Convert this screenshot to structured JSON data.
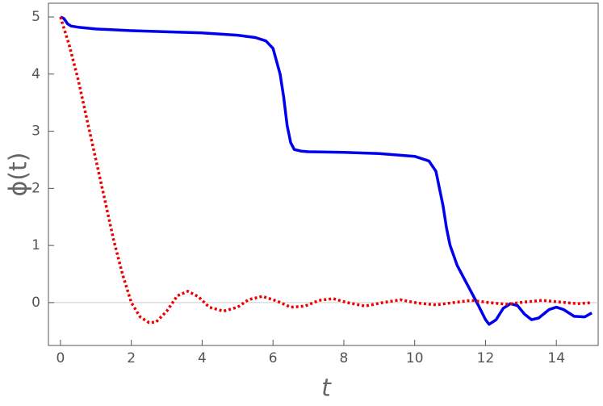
{
  "chart_data": {
    "type": "line",
    "x_label": "t",
    "y_label": "ϕ(t)",
    "xlim": [
      -0.34,
      15.18
    ],
    "ylim": [
      -0.75,
      5.24
    ],
    "xticks": [
      0,
      2,
      4,
      6,
      8,
      10,
      12,
      14
    ],
    "yticks": [
      0,
      1,
      2,
      3,
      4,
      5
    ],
    "zero_line": true,
    "series": [
      {
        "color": "#0000ee",
        "style": "solid",
        "x": [
          0,
          0.1,
          0.2,
          0.3,
          0.5,
          1,
          2,
          3,
          4,
          5,
          5.5,
          5.8,
          6.0,
          6.2,
          6.3,
          6.4,
          6.5,
          6.6,
          6.8,
          7,
          8,
          9,
          10,
          10.4,
          10.6,
          10.8,
          10.9,
          11,
          11.2,
          11.5,
          11.8,
          12,
          12.1,
          12.3,
          12.5,
          12.7,
          12.9,
          13.1,
          13.3,
          13.5,
          13.8,
          14,
          14.2,
          14.5,
          14.8,
          15
        ],
        "values": [
          5.0,
          4.97,
          4.88,
          4.84,
          4.82,
          4.79,
          4.76,
          4.74,
          4.72,
          4.68,
          4.64,
          4.58,
          4.45,
          4.0,
          3.6,
          3.1,
          2.8,
          2.68,
          2.65,
          2.64,
          2.63,
          2.61,
          2.56,
          2.48,
          2.3,
          1.7,
          1.3,
          1.0,
          0.65,
          0.3,
          -0.05,
          -0.3,
          -0.38,
          -0.3,
          -0.1,
          -0.02,
          -0.05,
          -0.2,
          -0.3,
          -0.27,
          -0.12,
          -0.08,
          -0.12,
          -0.24,
          -0.25,
          -0.18
        ]
      },
      {
        "color": "#ee0000",
        "style": "dotted",
        "x": [
          0,
          0.25,
          0.5,
          0.75,
          1,
          1.25,
          1.5,
          1.75,
          2,
          2.25,
          2.5,
          2.7,
          3,
          3.3,
          3.6,
          3.9,
          4.2,
          4.6,
          5,
          5.3,
          5.7,
          6.1,
          6.5,
          6.9,
          7.3,
          7.7,
          8.1,
          8.6,
          9.1,
          9.6,
          10.1,
          10.6,
          11.1,
          11.6,
          12.1,
          12.6,
          13.1,
          13.6,
          14.1,
          14.6,
          15
        ],
        "values": [
          5.0,
          4.5,
          3.9,
          3.2,
          2.5,
          1.8,
          1.1,
          0.5,
          0.0,
          -0.25,
          -0.35,
          -0.34,
          -0.15,
          0.12,
          0.2,
          0.1,
          -0.08,
          -0.15,
          -0.08,
          0.05,
          0.11,
          0.03,
          -0.08,
          -0.06,
          0.04,
          0.07,
          0.0,
          -0.06,
          0.0,
          0.05,
          -0.01,
          -0.04,
          0.0,
          0.04,
          0.0,
          -0.03,
          0.01,
          0.04,
          0.01,
          -0.02,
          0.0
        ]
      }
    ]
  }
}
